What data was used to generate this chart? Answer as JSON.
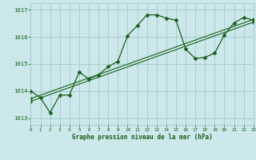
{
  "title": "Graphe pression niveau de la mer (hPa)",
  "background_color": "#cce8ea",
  "grid_color": "#99c4c8",
  "line_color": "#1a5e1a",
  "xlim": [
    0,
    23
  ],
  "ylim": [
    1012.75,
    1017.25
  ],
  "yticks": [
    1013,
    1014,
    1015,
    1016,
    1017
  ],
  "xticks": [
    0,
    1,
    2,
    3,
    4,
    5,
    6,
    7,
    8,
    9,
    10,
    11,
    12,
    13,
    14,
    15,
    16,
    17,
    18,
    19,
    20,
    21,
    22,
    23
  ],
  "main_line_x": [
    0,
    1,
    2,
    3,
    4,
    5,
    6,
    7,
    8,
    9,
    10,
    11,
    12,
    13,
    14,
    15,
    16,
    17,
    18,
    19,
    20,
    21,
    22,
    23
  ],
  "main_line_y": [
    1014.0,
    1013.75,
    1013.2,
    1013.85,
    1013.85,
    1014.7,
    1014.45,
    1014.6,
    1014.9,
    1015.1,
    1016.05,
    1016.42,
    1016.82,
    1016.82,
    1016.7,
    1016.62,
    1015.55,
    1015.2,
    1015.25,
    1015.4,
    1016.08,
    1016.52,
    1016.72,
    1016.62
  ],
  "trend1_x": [
    0,
    23
  ],
  "trend1_y": [
    1013.72,
    1016.65
  ],
  "trend2_x": [
    0,
    23
  ],
  "trend2_y": [
    1013.62,
    1016.55
  ],
  "figwidth": 3.2,
  "figheight": 2.0,
  "dpi": 100
}
